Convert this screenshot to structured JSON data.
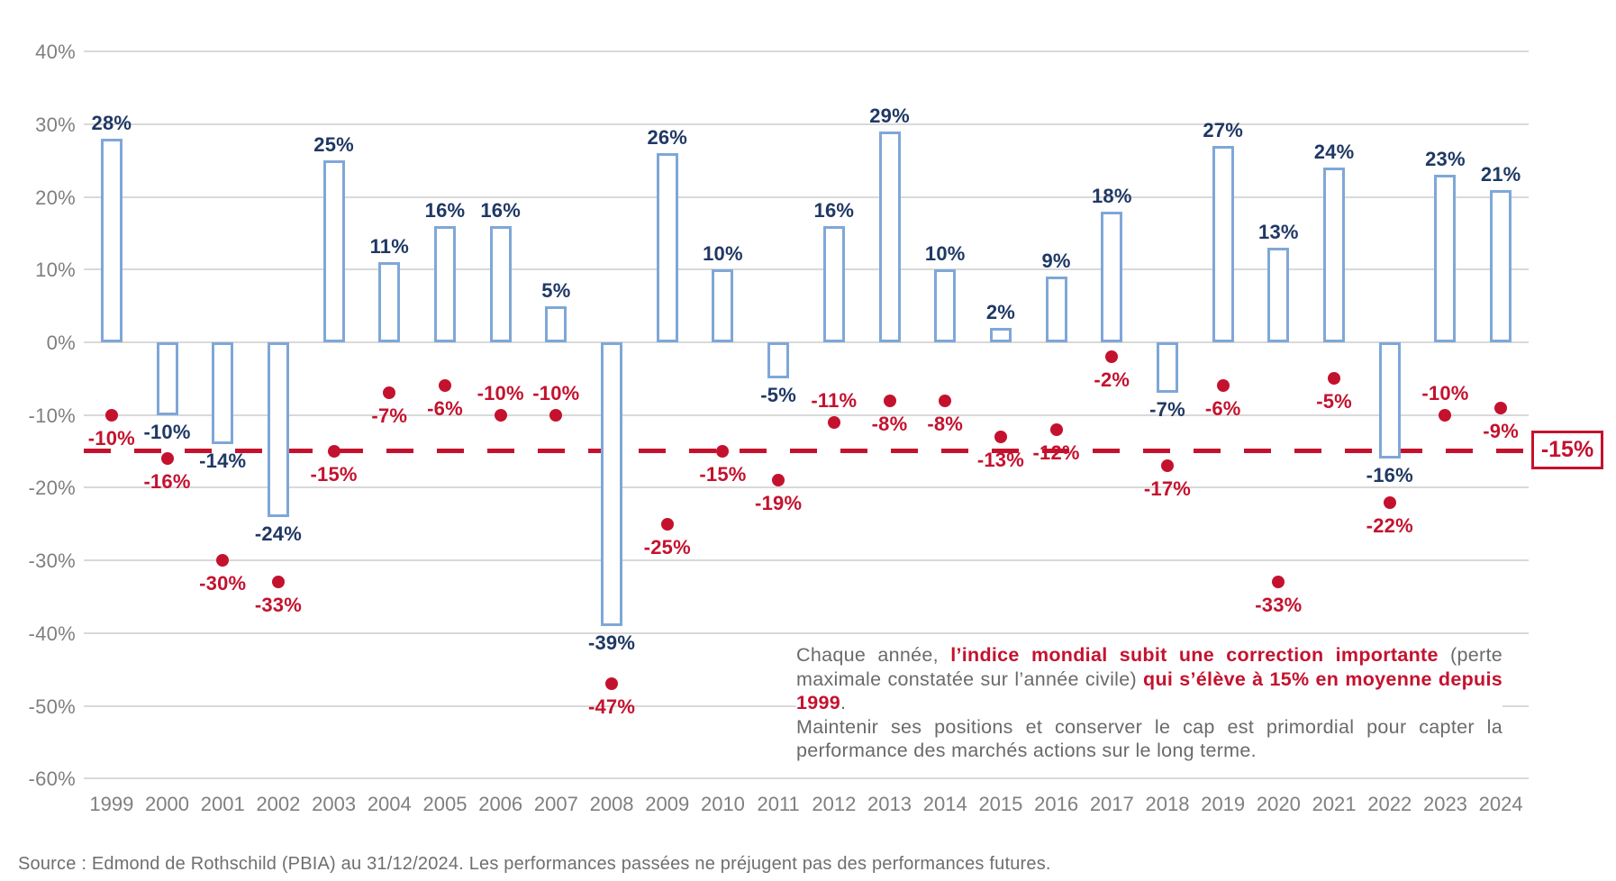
{
  "chart_data": {
    "type": "bar",
    "title": "",
    "description": "Annual performance of the world index (bars) vs. maximum intra-year drawdown (dots), 1999-2024",
    "categories": [
      "1999",
      "2000",
      "2001",
      "2002",
      "2003",
      "2004",
      "2005",
      "2006",
      "2007",
      "2008",
      "2009",
      "2010",
      "2011",
      "2012",
      "2013",
      "2014",
      "2015",
      "2016",
      "2017",
      "2018",
      "2019",
      "2020",
      "2021",
      "2022",
      "2023",
      "2024"
    ],
    "series": [
      {
        "name": "annual_performance",
        "mark": "bar",
        "values": [
          28,
          -10,
          -14,
          -24,
          25,
          11,
          16,
          16,
          5,
          -39,
          26,
          10,
          -5,
          16,
          29,
          10,
          2,
          9,
          18,
          -7,
          27,
          13,
          24,
          -16,
          23,
          21
        ]
      },
      {
        "name": "max_drawdown",
        "mark": "point",
        "values": [
          -10,
          -16,
          -30,
          -33,
          -15,
          -7,
          -6,
          -10,
          -10,
          -47,
          -25,
          -15,
          -19,
          -11,
          -8,
          -8,
          -13,
          -12,
          -2,
          -17,
          -6,
          -33,
          -5,
          -22,
          -10,
          -9
        ]
      }
    ],
    "years": [
      {
        "year": "1999",
        "performance": 28,
        "performance_label": "28%",
        "drawdown": -10,
        "drawdown_label": "-10%",
        "drawdown_label_position": "below"
      },
      {
        "year": "2000",
        "performance": -10,
        "performance_label": "-10%",
        "drawdown": -16,
        "drawdown_label": "-16%",
        "drawdown_label_position": "below"
      },
      {
        "year": "2001",
        "performance": -14,
        "performance_label": "-14%",
        "drawdown": -30,
        "drawdown_label": "-30%",
        "drawdown_label_position": "below"
      },
      {
        "year": "2002",
        "performance": -24,
        "performance_label": "-24%",
        "drawdown": -33,
        "drawdown_label": "-33%",
        "drawdown_label_position": "below"
      },
      {
        "year": "2003",
        "performance": 25,
        "performance_label": "25%",
        "drawdown": -15,
        "drawdown_label": "-15%",
        "drawdown_label_position": "below"
      },
      {
        "year": "2004",
        "performance": 11,
        "performance_label": "11%",
        "drawdown": -7,
        "drawdown_label": "-7%",
        "drawdown_label_position": "below"
      },
      {
        "year": "2005",
        "performance": 16,
        "performance_label": "16%",
        "drawdown": -6,
        "drawdown_label": "-6%",
        "drawdown_label_position": "below"
      },
      {
        "year": "2006",
        "performance": 16,
        "performance_label": "16%",
        "drawdown": -10,
        "drawdown_label": "-10%",
        "drawdown_label_position": "above"
      },
      {
        "year": "2007",
        "performance": 5,
        "performance_label": "5%",
        "drawdown": -10,
        "drawdown_label": "-10%",
        "drawdown_label_position": "above"
      },
      {
        "year": "2008",
        "performance": -39,
        "performance_label": "-39%",
        "drawdown": -47,
        "drawdown_label": "-47%",
        "drawdown_label_position": "below"
      },
      {
        "year": "2009",
        "performance": 26,
        "performance_label": "26%",
        "drawdown": -25,
        "drawdown_label": "-25%",
        "drawdown_label_position": "below"
      },
      {
        "year": "2010",
        "performance": 10,
        "performance_label": "10%",
        "drawdown": -15,
        "drawdown_label": "-15%",
        "drawdown_label_position": "below"
      },
      {
        "year": "2011",
        "performance": -5,
        "performance_label": "-5%",
        "drawdown": -19,
        "drawdown_label": "-19%",
        "drawdown_label_position": "below"
      },
      {
        "year": "2012",
        "performance": 16,
        "performance_label": "16%",
        "drawdown": -11,
        "drawdown_label": "-11%",
        "drawdown_label_position": "above"
      },
      {
        "year": "2013",
        "performance": 29,
        "performance_label": "29%",
        "drawdown": -8,
        "drawdown_label": "-8%",
        "drawdown_label_position": "below"
      },
      {
        "year": "2014",
        "performance": 10,
        "performance_label": "10%",
        "drawdown": -8,
        "drawdown_label": "-8%",
        "drawdown_label_position": "below"
      },
      {
        "year": "2015",
        "performance": 2,
        "performance_label": "2%",
        "drawdown": -13,
        "drawdown_label": "-13%",
        "drawdown_label_position": "below"
      },
      {
        "year": "2016",
        "performance": 9,
        "performance_label": "9%",
        "drawdown": -12,
        "drawdown_label": "-12%",
        "drawdown_label_position": "below"
      },
      {
        "year": "2017",
        "performance": 18,
        "performance_label": "18%",
        "drawdown": -2,
        "drawdown_label": "-2%",
        "drawdown_label_position": "below"
      },
      {
        "year": "2018",
        "performance": -7,
        "performance_label": "-7%",
        "drawdown": -17,
        "drawdown_label": "-17%",
        "drawdown_label_position": "below"
      },
      {
        "year": "2019",
        "performance": 27,
        "performance_label": "27%",
        "drawdown": -6,
        "drawdown_label": "-6%",
        "drawdown_label_position": "below"
      },
      {
        "year": "2020",
        "performance": 13,
        "performance_label": "13%",
        "drawdown": -33,
        "drawdown_label": "-33%",
        "drawdown_label_position": "below"
      },
      {
        "year": "2021",
        "performance": 24,
        "performance_label": "24%",
        "drawdown": -5,
        "drawdown_label": "-5%",
        "drawdown_label_position": "below"
      },
      {
        "year": "2022",
        "performance": -16,
        "performance_label": "-16%",
        "drawdown": -22,
        "drawdown_label": "-22%",
        "drawdown_label_position": "below"
      },
      {
        "year": "2023",
        "performance": 23,
        "performance_label": "23%",
        "drawdown": -10,
        "drawdown_label": "-10%",
        "drawdown_label_position": "above"
      },
      {
        "year": "2024",
        "performance": 21,
        "performance_label": "21%",
        "drawdown": -9,
        "drawdown_label": "-9%",
        "drawdown_label_position": "below"
      }
    ],
    "y_axis": {
      "range": [
        -60,
        40
      ],
      "grid": true,
      "ticks": [
        {
          "value": 40,
          "label": "40%"
        },
        {
          "value": 30,
          "label": "30%"
        },
        {
          "value": 20,
          "label": "20%"
        },
        {
          "value": 10,
          "label": "10%"
        },
        {
          "value": 0,
          "label": "0%"
        },
        {
          "value": -10,
          "label": "-10%"
        },
        {
          "value": -20,
          "label": "-20%"
        },
        {
          "value": -30,
          "label": "-30%"
        },
        {
          "value": -40,
          "label": "-40%"
        },
        {
          "value": -50,
          "label": "-50%"
        },
        {
          "value": -60,
          "label": "-60%"
        }
      ]
    },
    "threshold_line": {
      "value": -15,
      "label": "-15%",
      "style": "dashed"
    },
    "legend_position": "none"
  },
  "annotation": {
    "paragraph1_segments": [
      {
        "text": "Chaque année, ",
        "style": "gray"
      },
      {
        "text": "l’indice mondial subit une correction importante",
        "style": "red"
      },
      {
        "text": " (perte maximale constatée sur l’année civile) ",
        "style": "gray"
      },
      {
        "text": "qui s’élève à 15% en moyenne depuis 1999",
        "style": "red"
      },
      {
        "text": ".",
        "style": "gray"
      }
    ],
    "paragraph2": "Maintenir ses positions et conserver le cap est primordial pour capter la performance des marchés actions sur le long terme."
  },
  "source_line": "Source : Edmond de Rothschild (PBIA) au 31/12/2024. Les performances passées ne préjugent pas des performances futures.",
  "colors": {
    "bar_border": "#7fa7d8",
    "bar_fill": "#ffffff",
    "bar_label": "#1f3864",
    "drawdown_red": "#c4122e",
    "gridline": "#d9d9d9",
    "axis_text": "#7f7f7f",
    "body_text": "#6a6a6a"
  }
}
